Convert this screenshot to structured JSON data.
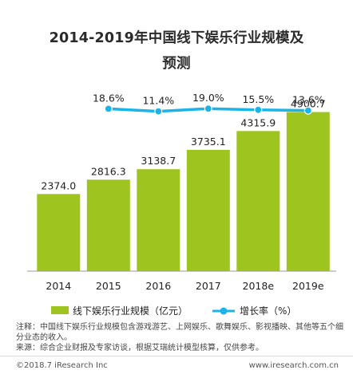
{
  "title": {
    "line1": "2014-2019年中国线下娱乐行业规模及",
    "line2": "预测"
  },
  "chart_data": {
    "type": "bar",
    "categories": [
      "2014",
      "2015",
      "2016",
      "2017",
      "2018e",
      "2019e"
    ],
    "series": [
      {
        "name": "线下娱乐行业规模（亿元）",
        "type": "bar",
        "values": [
          2374.0,
          2816.3,
          3138.7,
          3735.1,
          4315.9,
          4900.7
        ],
        "labels": [
          "2374.0",
          "2816.3",
          "3138.7",
          "3735.1",
          "4315.9",
          "4900.7"
        ],
        "color": "#9dc41f"
      },
      {
        "name": "增长率（%）",
        "type": "line",
        "values": [
          null,
          18.6,
          11.4,
          19.0,
          15.5,
          13.6
        ],
        "labels": [
          "",
          "18.6%",
          "11.4%",
          "19.0%",
          "15.5%",
          "13.6%"
        ],
        "color": "#1ab4e8"
      }
    ],
    "ylim": [
      0,
      5600
    ],
    "growth_ylim": [
      0,
      160
    ]
  },
  "notes": {
    "note": "注释：中国线下娱乐行业规模包含游戏游艺、上网娱乐、歌舞娱乐、影视播映、其他等五个细分业态的收入。",
    "source": "来源：综合企业财报及专家访谈，根据艾瑞统计模型核算，仅供参考。"
  },
  "footer": {
    "left": "©2018.7 iResearch Inc",
    "right": "www.iresearch.com.cn"
  }
}
